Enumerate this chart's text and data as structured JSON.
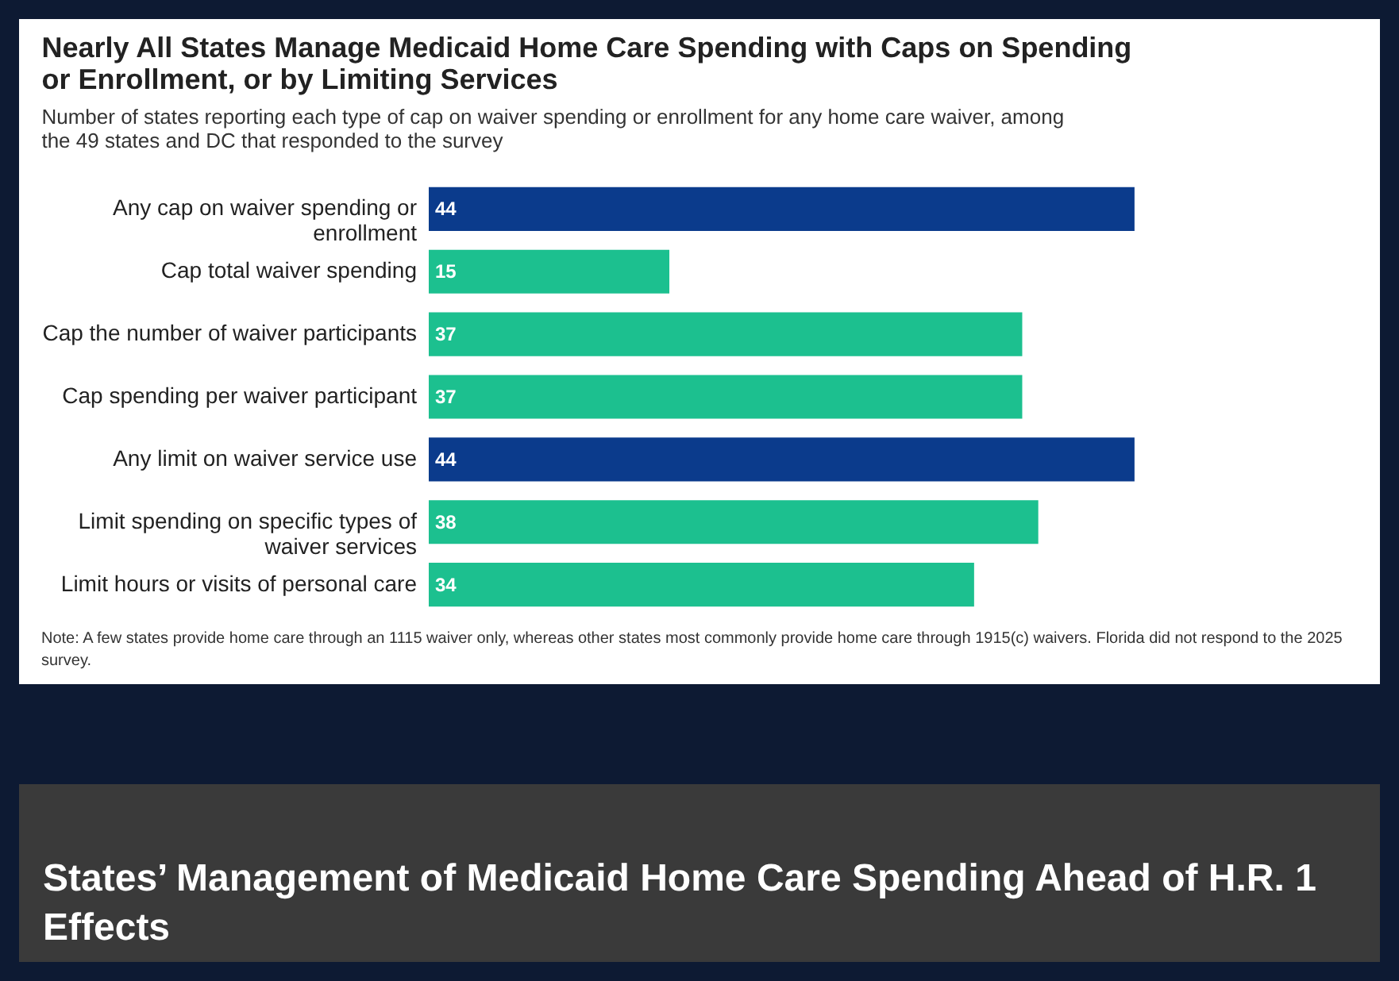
{
  "chart_data": {
    "type": "bar",
    "orientation": "horizontal",
    "title": "Nearly All States Manage Medicaid Home Care Spending with Caps on Spending or Enrollment, or by Limiting Services",
    "subtitle": "Number of states reporting each type of cap on waiver spending or enrollment for any home care waiver, among the 49 states and DC that responded to the survey",
    "categories": [
      "Any cap on waiver spending or enrollment",
      "Cap total waiver spending",
      "Cap the number of waiver participants",
      "Cap spending per waiver participant",
      "Any limit on waiver service use",
      "Limit spending on specific types of waiver services",
      "Limit hours or visits of personal care"
    ],
    "values": [
      44,
      15,
      37,
      37,
      44,
      38,
      34
    ],
    "colors": [
      "#0b3b8c",
      "#1cc08f",
      "#1cc08f",
      "#1cc08f",
      "#0b3b8c",
      "#1cc08f",
      "#1cc08f"
    ],
    "data_labels": true,
    "annotations": [
      "Note: A few states provide home care through an 1115 waiver only, whereas other states most commonly provide home care through 1915(c) waivers. Florida did not respond to the 2025 survey.",
      "States’ Management of Medicaid Home Care Spending Ahead of H.R. 1 Effects"
    ]
  }
}
